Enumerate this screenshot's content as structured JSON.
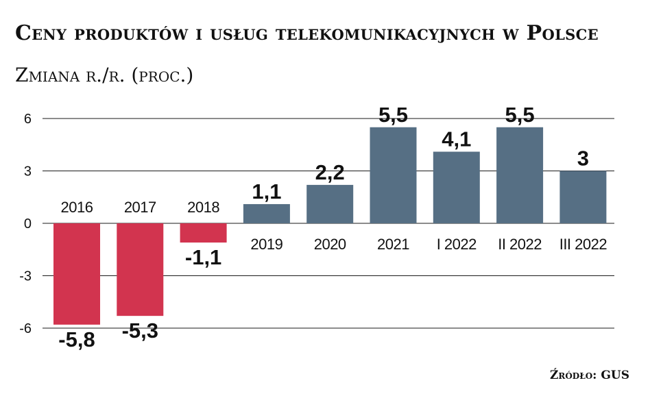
{
  "title": "Ceny produktów i usług telekomunikacyjnych w Polsce",
  "subtitle": "Zmiana r./r. (proc.)",
  "source": "Źródło: GUS",
  "colors": {
    "negative": "#d2344f",
    "positive": "#566f84",
    "grid": "#1a1a1a",
    "text": "#111111"
  },
  "chart_data": {
    "type": "bar",
    "categories": [
      "2016",
      "2017",
      "2018",
      "2019",
      "2020",
      "2021",
      "I 2022",
      "II 2022",
      "III 2022"
    ],
    "values": [
      -5.8,
      -5.3,
      -1.1,
      1.1,
      2.2,
      5.5,
      4.1,
      5.5,
      3
    ],
    "value_labels": [
      "-5,8",
      "-5,3",
      "-1,1",
      "1,1",
      "2,2",
      "5,5",
      "4,1",
      "5,5",
      "3"
    ],
    "yticks": [
      6,
      3,
      0,
      -3,
      -6
    ],
    "ytick_labels": [
      "6",
      "3",
      "0",
      "-3",
      "-6"
    ],
    "ylim": [
      -6,
      6
    ],
    "grid": true,
    "xlabel": "",
    "ylabel": ""
  }
}
